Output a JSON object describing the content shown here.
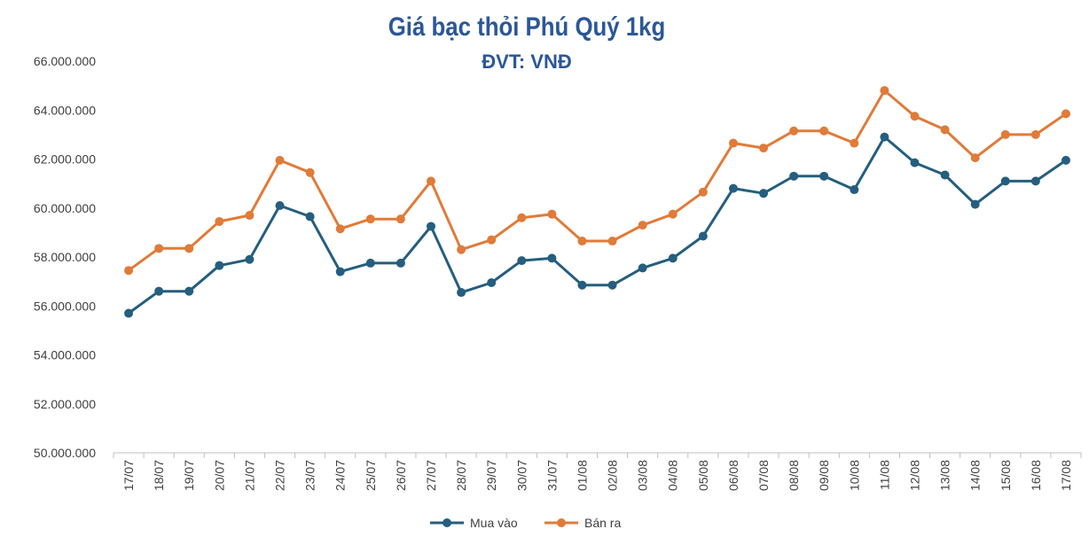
{
  "chart_data": {
    "type": "line",
    "title": "Giá bạc thỏi Phú Quý 1kg",
    "subtitle": "ĐVT: VNĐ",
    "xlabel": "",
    "ylabel": "",
    "ylim": [
      50000000,
      66000000
    ],
    "y_ticks": [
      50000000,
      52000000,
      54000000,
      56000000,
      58000000,
      60000000,
      62000000,
      64000000,
      66000000
    ],
    "y_tick_labels": [
      "50.000.000",
      "52.000.000",
      "54.000.000",
      "56.000.000",
      "58.000.000",
      "60.000.000",
      "62.000.000",
      "64.000.000",
      "66.000.000"
    ],
    "grid": false,
    "legend_position": "bottom",
    "categories": [
      "17/07",
      "18/07",
      "19/07",
      "20/07",
      "21/07",
      "22/07",
      "23/07",
      "24/07",
      "25/07",
      "26/07",
      "27/07",
      "28/07",
      "29/07",
      "30/07",
      "31/07",
      "01/08",
      "02/08",
      "03/08",
      "04/08",
      "05/08",
      "06/08",
      "07/08",
      "08/08",
      "09/08",
      "10/08",
      "11/08",
      "12/08",
      "13/08",
      "14/08",
      "15/08",
      "16/08",
      "17/08"
    ],
    "series": [
      {
        "name": "Mua vào",
        "color": "#255e7e",
        "values": [
          55700000,
          56600000,
          56600000,
          57650000,
          57900000,
          60100000,
          59650000,
          57400000,
          57750000,
          57750000,
          59250000,
          56550000,
          56950000,
          57850000,
          57950000,
          56850000,
          56850000,
          57550000,
          57950000,
          58850000,
          60800000,
          60600000,
          61300000,
          61300000,
          60750000,
          62900000,
          61850000,
          61350000,
          60150000,
          61100000,
          61100000,
          61950000
        ]
      },
      {
        "name": "Bán ra",
        "color": "#e07b39",
        "values": [
          57450000,
          58350000,
          58350000,
          59450000,
          59700000,
          61950000,
          61450000,
          59150000,
          59550000,
          59550000,
          61100000,
          58300000,
          58700000,
          59600000,
          59750000,
          58650000,
          58650000,
          59300000,
          59750000,
          60650000,
          62650000,
          62450000,
          63150000,
          63150000,
          62650000,
          64800000,
          63750000,
          63200000,
          62050000,
          63000000,
          63000000,
          63850000
        ]
      }
    ]
  }
}
